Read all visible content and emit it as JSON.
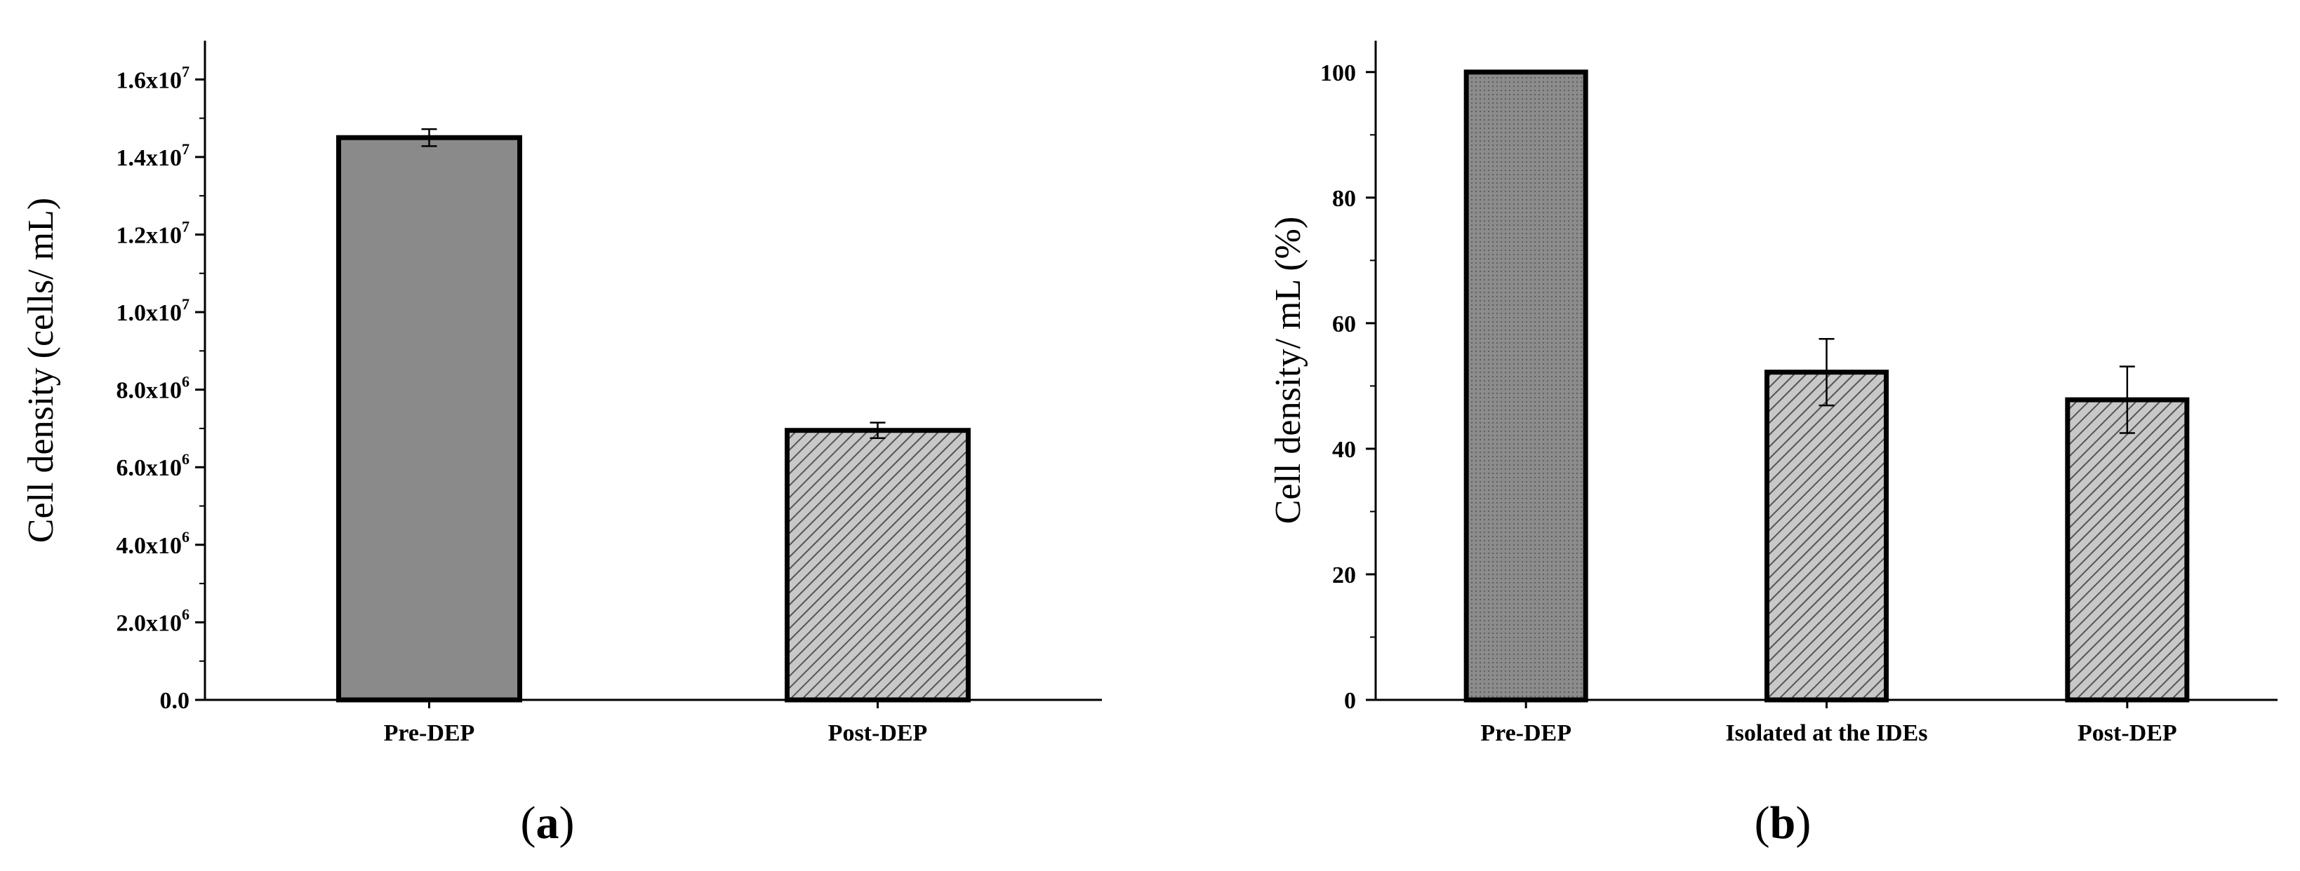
{
  "figure": {
    "panels": [
      {
        "label_open": "(",
        "label_letter": "a",
        "label_close": ")"
      },
      {
        "label_open": "(",
        "label_letter": "b",
        "label_close": ")"
      }
    ]
  },
  "chart_data": [
    {
      "type": "bar",
      "title": "",
      "xlabel": "",
      "ylabel": "Cell density (cells/ mL)",
      "categories": [
        "Pre-DEP",
        "Post-DEP"
      ],
      "values": [
        14500000,
        6950000
      ],
      "errors": [
        220000,
        200000
      ],
      "ylim": [
        0,
        17000000
      ],
      "yticks": [
        0,
        2000000,
        4000000,
        6000000,
        8000000,
        10000000,
        12000000,
        14000000,
        16000000
      ],
      "ytick_labels": [
        {
          "mant": "0.0",
          "exp": ""
        },
        {
          "mant": "2.0x10",
          "exp": "6"
        },
        {
          "mant": "4.0x10",
          "exp": "6"
        },
        {
          "mant": "6.0x10",
          "exp": "6"
        },
        {
          "mant": "8.0x10",
          "exp": "6"
        },
        {
          "mant": "1.0x10",
          "exp": "7"
        },
        {
          "mant": "1.2x10",
          "exp": "7"
        },
        {
          "mant": "1.4x10",
          "exp": "7"
        },
        {
          "mant": "1.6x10",
          "exp": "7"
        }
      ],
      "bar_fills": [
        "#8a8a8a",
        "hatch"
      ],
      "grid": false
    },
    {
      "type": "bar",
      "title": "",
      "xlabel": "",
      "ylabel": "Cell density/ mL (%)",
      "categories": [
        "Pre-DEP",
        "Isolated at the IDEs",
        "Post-DEP"
      ],
      "values": [
        100,
        52.2,
        47.8
      ],
      "errors": [
        0,
        5.3,
        5.3
      ],
      "ylim": [
        0,
        105
      ],
      "yticks": [
        0,
        20,
        40,
        60,
        80,
        100
      ],
      "ytick_labels": [
        {
          "mant": "0",
          "exp": ""
        },
        {
          "mant": "20",
          "exp": ""
        },
        {
          "mant": "40",
          "exp": ""
        },
        {
          "mant": "60",
          "exp": ""
        },
        {
          "mant": "80",
          "exp": ""
        },
        {
          "mant": "100",
          "exp": ""
        }
      ],
      "bar_fills": [
        "#8a8a8a",
        "hatch",
        "hatch"
      ],
      "grid": false
    }
  ]
}
